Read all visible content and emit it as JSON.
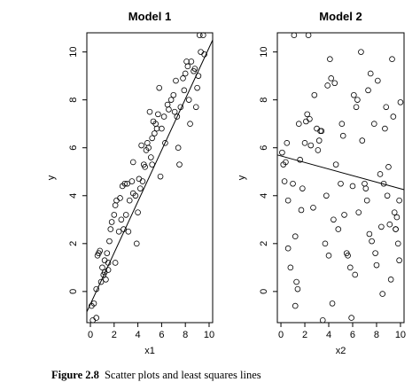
{
  "chart_data": [
    {
      "type": "scatter",
      "title": "Model 1",
      "xlabel": "x1",
      "ylabel": "y",
      "xlim": [
        -0.3,
        10.3
      ],
      "ylim": [
        -1.3,
        10.8
      ],
      "xticks": [
        "0",
        "2",
        "4",
        "6",
        "8",
        "10"
      ],
      "yticks": [
        "0",
        "2",
        "4",
        "6",
        "8",
        "10"
      ],
      "grid": false,
      "points": [
        [
          0.1,
          -0.6
        ],
        [
          0.2,
          -1.2
        ],
        [
          0.3,
          -0.5
        ],
        [
          0.5,
          -1.1
        ],
        [
          0.5,
          0.1
        ],
        [
          0.6,
          1.5
        ],
        [
          0.7,
          1.6
        ],
        [
          0.8,
          1.7
        ],
        [
          0.9,
          0.4
        ],
        [
          1.0,
          1.0
        ],
        [
          1.1,
          0.7
        ],
        [
          1.2,
          0.8
        ],
        [
          1.2,
          1.3
        ],
        [
          1.3,
          0.5
        ],
        [
          1.4,
          1.6
        ],
        [
          1.5,
          0.9
        ],
        [
          1.5,
          1.2
        ],
        [
          1.6,
          2.1
        ],
        [
          1.7,
          2.6
        ],
        [
          1.8,
          2.9
        ],
        [
          2.0,
          3.2
        ],
        [
          2.1,
          3.6
        ],
        [
          2.1,
          1.2
        ],
        [
          2.2,
          3.8
        ],
        [
          2.4,
          2.5
        ],
        [
          2.5,
          3.9
        ],
        [
          2.6,
          3.0
        ],
        [
          2.7,
          4.4
        ],
        [
          2.8,
          2.6
        ],
        [
          2.9,
          4.5
        ],
        [
          3.0,
          3.2
        ],
        [
          3.1,
          4.5
        ],
        [
          3.2,
          2.5
        ],
        [
          3.3,
          3.8
        ],
        [
          3.5,
          4.6
        ],
        [
          3.6,
          4.1
        ],
        [
          3.6,
          5.4
        ],
        [
          3.8,
          4.0
        ],
        [
          3.9,
          2.0
        ],
        [
          4.0,
          3.3
        ],
        [
          4.1,
          4.7
        ],
        [
          4.2,
          4.3
        ],
        [
          4.3,
          6.1
        ],
        [
          4.4,
          4.6
        ],
        [
          4.5,
          5.3
        ],
        [
          4.6,
          5.2
        ],
        [
          4.7,
          5.9
        ],
        [
          4.8,
          6.2
        ],
        [
          4.9,
          6.0
        ],
        [
          5.0,
          7.5
        ],
        [
          5.1,
          5.6
        ],
        [
          5.2,
          5.3
        ],
        [
          5.2,
          6.4
        ],
        [
          5.3,
          7.1
        ],
        [
          5.4,
          6.6
        ],
        [
          5.5,
          7.0
        ],
        [
          5.6,
          6.8
        ],
        [
          5.7,
          7.4
        ],
        [
          5.8,
          8.5
        ],
        [
          5.9,
          4.8
        ],
        [
          6.0,
          6.8
        ],
        [
          6.2,
          7.3
        ],
        [
          6.3,
          6.2
        ],
        [
          6.5,
          7.8
        ],
        [
          6.6,
          7.6
        ],
        [
          6.8,
          8.0
        ],
        [
          7.0,
          8.2
        ],
        [
          7.1,
          7.5
        ],
        [
          7.2,
          8.8
        ],
        [
          7.3,
          7.3
        ],
        [
          7.4,
          6.0
        ],
        [
          7.5,
          5.3
        ],
        [
          7.6,
          7.7
        ],
        [
          7.8,
          8.9
        ],
        [
          7.9,
          8.4
        ],
        [
          8.0,
          9.1
        ],
        [
          8.1,
          9.6
        ],
        [
          8.2,
          9.4
        ],
        [
          8.3,
          8.0
        ],
        [
          8.4,
          7.0
        ],
        [
          8.5,
          9.6
        ],
        [
          8.7,
          9.2
        ],
        [
          8.8,
          9.3
        ],
        [
          8.9,
          7.7
        ],
        [
          9.0,
          8.5
        ],
        [
          9.1,
          9.0
        ],
        [
          9.2,
          10.7
        ],
        [
          9.3,
          10.0
        ],
        [
          9.5,
          10.7
        ],
        [
          9.6,
          9.9
        ]
      ],
      "fit_line": {
        "x": [
          -0.3,
          10.3
        ],
        "y": [
          -0.85,
          10.5
        ]
      }
    },
    {
      "type": "scatter",
      "title": "Model 2",
      "xlabel": "x2",
      "ylabel": "y",
      "xlim": [
        -0.3,
        10.3
      ],
      "ylim": [
        -1.3,
        10.8
      ],
      "xticks": [
        "0",
        "2",
        "4",
        "6",
        "8",
        "10"
      ],
      "yticks": [
        "0",
        "2",
        "4",
        "6",
        "8",
        "10"
      ],
      "grid": false,
      "points": [
        [
          0.1,
          5.8
        ],
        [
          0.2,
          5.3
        ],
        [
          0.3,
          4.6
        ],
        [
          0.4,
          5.4
        ],
        [
          0.5,
          6.2
        ],
        [
          0.6,
          1.8
        ],
        [
          0.6,
          3.8
        ],
        [
          0.8,
          1.0
        ],
        [
          1.0,
          4.5
        ],
        [
          1.1,
          10.7
        ],
        [
          1.2,
          2.3
        ],
        [
          1.2,
          -0.6
        ],
        [
          1.3,
          0.4
        ],
        [
          1.4,
          0.1
        ],
        [
          1.5,
          7.0
        ],
        [
          1.6,
          5.5
        ],
        [
          1.7,
          3.4
        ],
        [
          1.8,
          4.3
        ],
        [
          2.0,
          6.2
        ],
        [
          2.1,
          7.1
        ],
        [
          2.2,
          7.4
        ],
        [
          2.3,
          10.7
        ],
        [
          2.4,
          7.2
        ],
        [
          2.5,
          6.1
        ],
        [
          2.7,
          3.5
        ],
        [
          2.8,
          8.2
        ],
        [
          3.0,
          6.8
        ],
        [
          3.2,
          6.3
        ],
        [
          3.3,
          6.7
        ],
        [
          3.4,
          6.7
        ],
        [
          3.5,
          -1.2
        ],
        [
          3.7,
          2.0
        ],
        [
          3.8,
          4.0
        ],
        [
          3.9,
          8.6
        ],
        [
          4.0,
          1.5
        ],
        [
          4.1,
          9.7
        ],
        [
          4.2,
          8.9
        ],
        [
          4.3,
          -0.5
        ],
        [
          4.5,
          8.7
        ],
        [
          4.6,
          5.3
        ],
        [
          4.8,
          2.6
        ],
        [
          5.0,
          4.5
        ],
        [
          5.1,
          7.0
        ],
        [
          5.2,
          6.5
        ],
        [
          5.3,
          3.2
        ],
        [
          5.5,
          1.6
        ],
        [
          5.6,
          1.5
        ],
        [
          5.8,
          1.0
        ],
        [
          5.9,
          -1.1
        ],
        [
          6.0,
          4.4
        ],
        [
          6.1,
          8.2
        ],
        [
          6.2,
          0.7
        ],
        [
          6.3,
          7.7
        ],
        [
          6.4,
          8.0
        ],
        [
          6.5,
          3.3
        ],
        [
          6.7,
          10.0
        ],
        [
          6.8,
          6.3
        ],
        [
          7.0,
          4.5
        ],
        [
          7.1,
          4.3
        ],
        [
          7.3,
          8.4
        ],
        [
          7.4,
          2.4
        ],
        [
          7.5,
          9.1
        ],
        [
          7.6,
          2.1
        ],
        [
          7.8,
          7.0
        ],
        [
          7.9,
          1.6
        ],
        [
          8.0,
          1.1
        ],
        [
          8.1,
          8.8
        ],
        [
          8.3,
          4.9
        ],
        [
          8.4,
          2.7
        ],
        [
          8.5,
          -0.1
        ],
        [
          8.7,
          6.8
        ],
        [
          8.8,
          7.7
        ],
        [
          8.9,
          4.0
        ],
        [
          9.0,
          5.2
        ],
        [
          9.1,
          2.8
        ],
        [
          9.2,
          0.5
        ],
        [
          9.3,
          9.7
        ],
        [
          9.4,
          7.3
        ],
        [
          9.5,
          3.3
        ],
        [
          9.6,
          2.6
        ],
        [
          9.6,
          2.6
        ],
        [
          9.7,
          3.1
        ],
        [
          9.8,
          2.0
        ],
        [
          9.9,
          1.3
        ],
        [
          10.0,
          7.9
        ],
        [
          9.9,
          3.8
        ],
        [
          8.6,
          4.5
        ],
        [
          7.2,
          3.8
        ],
        [
          4.4,
          3.0
        ],
        [
          3.1,
          5.9
        ]
      ],
      "fit_line": {
        "x": [
          -0.3,
          10.3
        ],
        "y": [
          5.7,
          4.25
        ]
      }
    }
  ],
  "caption": {
    "label": "Figure 2.8",
    "text": "Scatter plots and least squares lines"
  }
}
